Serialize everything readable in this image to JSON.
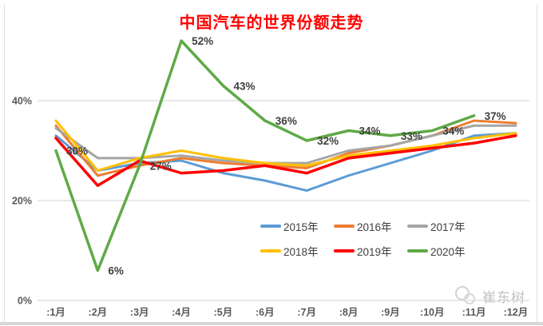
{
  "title": "中国汽车的世界份额走势",
  "title_color": "#FF0000",
  "watermark": {
    "text": "崔东树",
    "logo": "paw-circles-icon",
    "color": "#c3c3c3"
  },
  "chart_data": {
    "type": "line",
    "title": "中国汽车的世界份额走势",
    "x_categories": [
      ":1月",
      ":2月",
      ":3月",
      ":4月",
      ":5月",
      ":6月",
      ":7月",
      ":8月",
      ":9月",
      ":10月",
      ":11月",
      ":12月"
    ],
    "y_ticks": [
      {
        "label": "0%",
        "value": 0
      },
      {
        "label": "20%",
        "value": 20
      },
      {
        "label": "40%",
        "value": 40
      }
    ],
    "ylim": [
      0,
      59
    ],
    "grid": "horizontal-only",
    "grid_color": "#d9d9d9",
    "axis_label_color": "#595959",
    "data_label_color": "#404040",
    "legend_position": "inside-bottom-two-rows",
    "series": [
      {
        "name": "2015年",
        "color": "#5B9BD5",
        "width": 3,
        "values": [
          33,
          26,
          27.5,
          28,
          25.5,
          24,
          22,
          25,
          27.5,
          30,
          33,
          33.5
        ]
      },
      {
        "name": "2016年",
        "color": "#ED7D31",
        "width": 3,
        "values": [
          35,
          25,
          27,
          28.5,
          27.5,
          27,
          26.5,
          29.5,
          31,
          33,
          36,
          35.5
        ]
      },
      {
        "name": "2017年",
        "color": "#A5A5A5",
        "width": 3,
        "values": [
          34.5,
          28.5,
          28.5,
          29,
          28,
          27.5,
          27.5,
          30,
          31,
          33,
          35,
          35
        ]
      },
      {
        "name": "2018年",
        "color": "#FFC000",
        "width": 3,
        "values": [
          36,
          26,
          28.5,
          30,
          28.5,
          27.5,
          27,
          29,
          30,
          31,
          32.5,
          33.5
        ]
      },
      {
        "name": "2019年",
        "color": "#FF0000",
        "width": 3.5,
        "values": [
          32.5,
          23,
          28,
          25.5,
          26,
          27,
          25.5,
          28.5,
          29.5,
          30.5,
          31.5,
          33
        ]
      },
      {
        "name": "2020年",
        "color": "#5FAA46",
        "width": 3.5,
        "values": [
          30,
          6,
          27,
          52,
          43,
          36,
          32,
          34,
          33,
          34,
          37,
          null
        ],
        "labels": [
          "30%",
          "6%",
          "27%",
          "52%",
          "43%",
          "36%",
          "32%",
          "34%",
          "33%",
          "34%",
          "37%",
          ""
        ]
      }
    ]
  }
}
